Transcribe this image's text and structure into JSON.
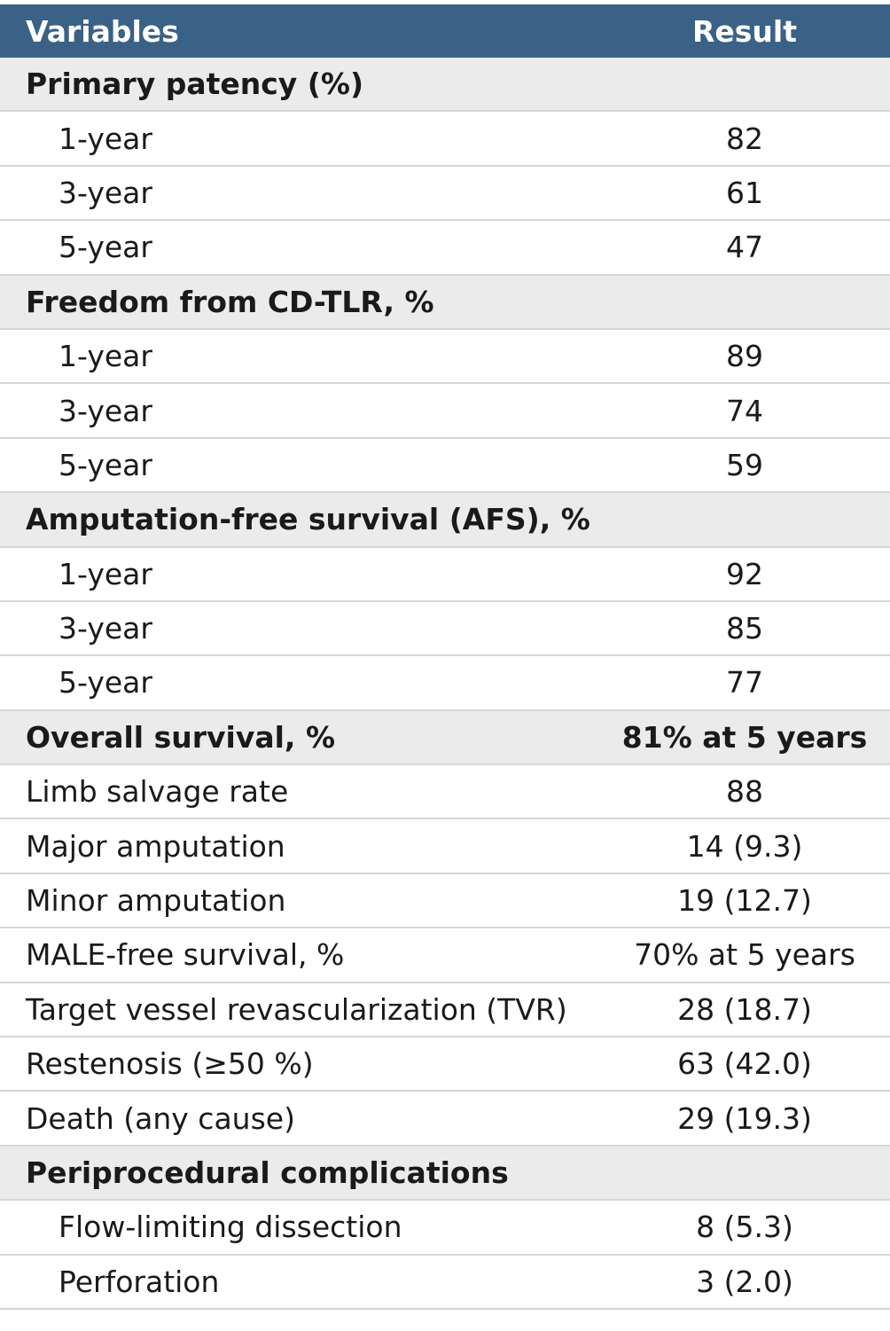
{
  "table": {
    "header": {
      "variables": "Variables",
      "result": "Result"
    },
    "rows": [
      {
        "kind": "section",
        "label": "Primary patency (%)",
        "value": ""
      },
      {
        "kind": "sub",
        "label": "1-year",
        "value": "82"
      },
      {
        "kind": "sub",
        "label": "3-year",
        "value": "61"
      },
      {
        "kind": "sub",
        "label": "5-year",
        "value": "47"
      },
      {
        "kind": "section",
        "label": "Freedom from CD-TLR, %",
        "value": ""
      },
      {
        "kind": "sub",
        "label": "1-year",
        "value": "89"
      },
      {
        "kind": "sub",
        "label": "3-year",
        "value": "74"
      },
      {
        "kind": "sub",
        "label": "5-year",
        "value": "59"
      },
      {
        "kind": "section",
        "label": "Amputation-free survival (AFS), %",
        "value": ""
      },
      {
        "kind": "sub",
        "label": "1-year",
        "value": "92"
      },
      {
        "kind": "sub",
        "label": "3-year",
        "value": "85"
      },
      {
        "kind": "sub",
        "label": "5-year",
        "value": "77"
      },
      {
        "kind": "section",
        "label": "Overall survival, %",
        "value": "81% at 5 years"
      },
      {
        "kind": "plain",
        "label": "Limb salvage rate",
        "value": "88"
      },
      {
        "kind": "plain",
        "label": "Major amputation",
        "value": "14 (9.3)"
      },
      {
        "kind": "plain",
        "label": "Minor amputation",
        "value": "19 (12.7)"
      },
      {
        "kind": "plain",
        "label": "MALE-free survival, %",
        "value": "70% at 5 years"
      },
      {
        "kind": "plain",
        "label": "Target vessel revascularization (TVR)",
        "value": "28 (18.7)"
      },
      {
        "kind": "plain",
        "label": "Restenosis (≥50 %)",
        "value": "63 (42.0)"
      },
      {
        "kind": "plain",
        "label": "Death (any cause)",
        "value": "29 (19.3)"
      },
      {
        "kind": "section",
        "label": "Periprocedural complications",
        "value": ""
      },
      {
        "kind": "sub",
        "label": "Flow-limiting dissection",
        "value": "8 (5.3)"
      },
      {
        "kind": "sub",
        "label": "Perforation",
        "value": "3 (2.0)"
      }
    ]
  },
  "colors": {
    "header_bg": "#3a6186",
    "section_bg": "#ebebeb",
    "divider": "#d6d6d6"
  }
}
